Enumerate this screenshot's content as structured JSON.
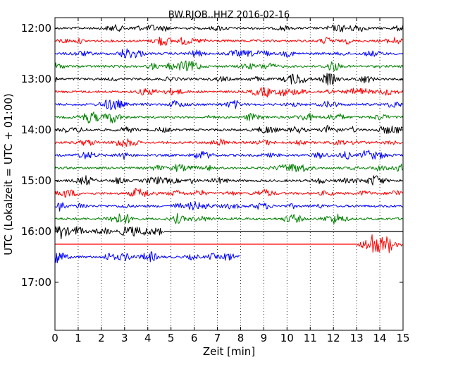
{
  "chart_data": {
    "type": "line",
    "title": "BW.RJOB..HHZ 2016-02-16",
    "xlabel": "Zeit  [min]",
    "ylabel": "UTC (Lokalzeit = UTC + 01:00)",
    "xlim": [
      0,
      15
    ],
    "x_ticks": [
      0,
      1,
      2,
      3,
      4,
      5,
      6,
      7,
      8,
      9,
      10,
      11,
      12,
      13,
      14,
      15
    ],
    "y_tick_labels": [
      "12:00",
      "13:00",
      "14:00",
      "15:00",
      "16:00",
      "17:00"
    ],
    "grid": "vertical dotted",
    "colors": [
      "#000000",
      "#ff0000",
      "#0000ff",
      "#008000"
    ],
    "series": [
      {
        "start": "12:00",
        "color": "#000000",
        "segments": [
          [
            0,
            15
          ]
        ]
      },
      {
        "start": "12:15",
        "color": "#ff0000",
        "segments": [
          [
            0,
            15
          ]
        ]
      },
      {
        "start": "12:30",
        "color": "#0000ff",
        "segments": [
          [
            0,
            15
          ]
        ]
      },
      {
        "start": "12:45",
        "color": "#008000",
        "segments": [
          [
            0,
            15
          ]
        ]
      },
      {
        "start": "13:00",
        "color": "#000000",
        "segments": [
          [
            0,
            15
          ]
        ]
      },
      {
        "start": "13:15",
        "color": "#ff0000",
        "segments": [
          [
            0,
            15
          ]
        ]
      },
      {
        "start": "13:30",
        "color": "#0000ff",
        "segments": [
          [
            0,
            15
          ]
        ]
      },
      {
        "start": "13:45",
        "color": "#008000",
        "segments": [
          [
            0,
            15
          ]
        ]
      },
      {
        "start": "14:00",
        "color": "#000000",
        "segments": [
          [
            0,
            15
          ]
        ]
      },
      {
        "start": "14:15",
        "color": "#ff0000",
        "segments": [
          [
            0,
            15
          ]
        ]
      },
      {
        "start": "14:30",
        "color": "#0000ff",
        "segments": [
          [
            0,
            15
          ]
        ]
      },
      {
        "start": "14:45",
        "color": "#008000",
        "segments": [
          [
            0,
            15
          ]
        ]
      },
      {
        "start": "15:00",
        "color": "#000000",
        "segments": [
          [
            0,
            15
          ]
        ]
      },
      {
        "start": "15:15",
        "color": "#ff0000",
        "segments": [
          [
            0,
            15
          ]
        ]
      },
      {
        "start": "15:30",
        "color": "#0000ff",
        "segments": [
          [
            0,
            15
          ]
        ]
      },
      {
        "start": "15:45",
        "color": "#008000",
        "segments": [
          [
            0,
            15
          ]
        ]
      },
      {
        "start": "16:00",
        "color": "#000000",
        "segments": [
          [
            0,
            4.7
          ]
        ],
        "flat": [
          [
            4.7,
            15
          ]
        ]
      },
      {
        "start": "16:15",
        "color": "#ff0000",
        "segments": [
          [
            13.0,
            15
          ]
        ],
        "flat": [
          [
            0,
            13.0
          ]
        ]
      },
      {
        "start": "16:30",
        "color": "#0000ff",
        "segments": [
          [
            0,
            8.0
          ]
        ]
      }
    ]
  }
}
